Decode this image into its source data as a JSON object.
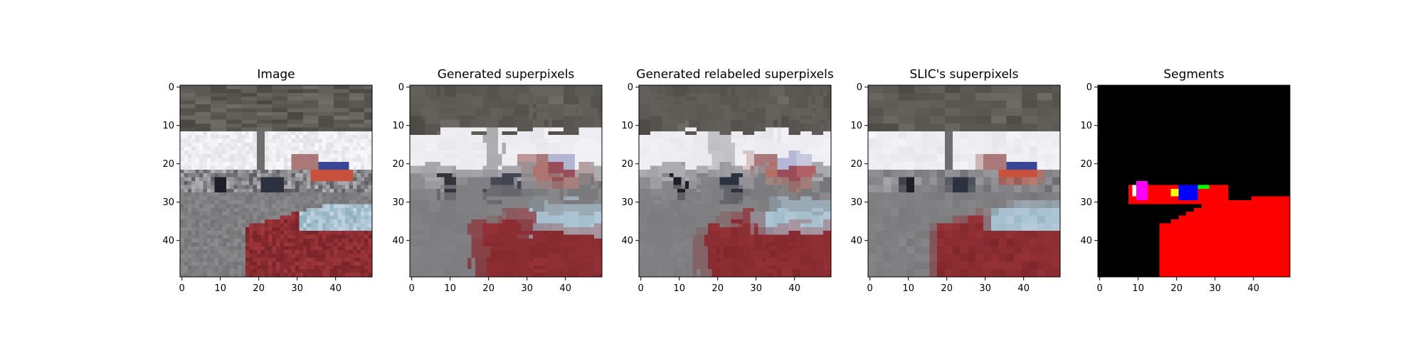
{
  "chart_data": [
    {
      "type": "heatmap",
      "title": "Image",
      "content": "raw-image",
      "xlim": [
        0,
        49
      ],
      "ylim": [
        49,
        0
      ],
      "xticks": [
        0,
        10,
        20,
        30,
        40
      ],
      "yticks": [
        0,
        10,
        20,
        30,
        40
      ],
      "xlabel": "",
      "ylabel": ""
    },
    {
      "type": "heatmap",
      "title": "Generated superpixels",
      "content": "superpixel-mean-colors",
      "xlim": [
        0,
        49
      ],
      "ylim": [
        49,
        0
      ],
      "xticks": [
        0,
        10,
        20,
        30,
        40
      ],
      "yticks": [
        0,
        10,
        20,
        30,
        40
      ],
      "xlabel": "",
      "ylabel": ""
    },
    {
      "type": "heatmap",
      "title": "Generated relabeled superpixels",
      "content": "relabeled-superpixel-colors",
      "xlim": [
        0,
        49
      ],
      "ylim": [
        49,
        0
      ],
      "xticks": [
        0,
        10,
        20,
        30,
        40
      ],
      "yticks": [
        0,
        10,
        20,
        30,
        40
      ],
      "xlabel": "",
      "ylabel": ""
    },
    {
      "type": "heatmap",
      "title": "SLIC's superpixels",
      "content": "slic-superpixel-colors",
      "xlim": [
        0,
        49
      ],
      "ylim": [
        49,
        0
      ],
      "xticks": [
        0,
        10,
        20,
        30,
        40
      ],
      "yticks": [
        0,
        10,
        20,
        30,
        40
      ],
      "xlabel": "",
      "ylabel": ""
    },
    {
      "type": "heatmap",
      "title": "Segments",
      "content": "segment-mask",
      "xlim": [
        0,
        49
      ],
      "ylim": [
        49,
        0
      ],
      "xticks": [
        0,
        10,
        20,
        30,
        40
      ],
      "yticks": [
        0,
        10,
        20,
        30,
        40
      ],
      "xlabel": "",
      "ylabel": "",
      "segment_colors": {
        "background": "#000000",
        "car": "#ff0000",
        "person": "#ff00ff",
        "vehicle": "#0000ff",
        "sign": "#ffff00",
        "other": "#00ff00"
      }
    }
  ]
}
